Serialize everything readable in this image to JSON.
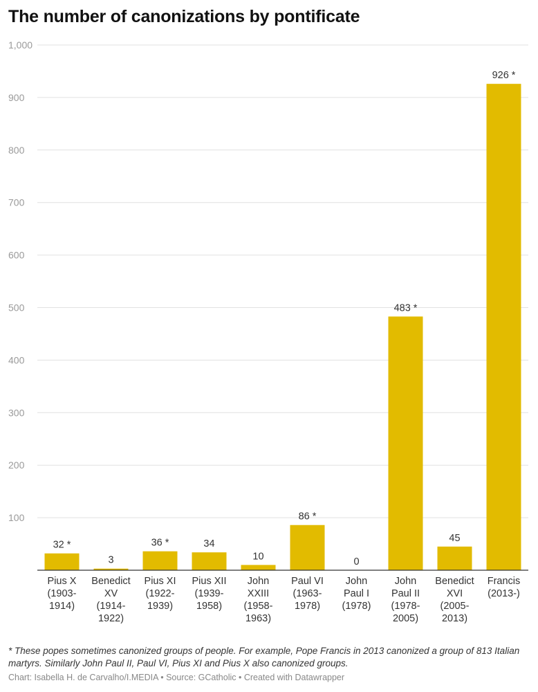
{
  "title": "The number of canonizations by pontificate",
  "chart_data": {
    "type": "bar",
    "title": "The number of canonizations by pontificate",
    "xlabel": "",
    "ylabel": "",
    "ylim": [
      0,
      1000
    ],
    "yticks": [
      "1,000",
      "900",
      "800",
      "700",
      "600",
      "500",
      "400",
      "300",
      "200",
      "100"
    ],
    "ytick_values": [
      1000,
      900,
      800,
      700,
      600,
      500,
      400,
      300,
      200,
      100
    ],
    "grid": true,
    "bar_color": "#e2bb00",
    "categories": [
      [
        "Pius X",
        "(1903-",
        "1914)"
      ],
      [
        "Benedict",
        "XV",
        "(1914-",
        "1922)"
      ],
      [
        "Pius XI",
        "(1922-",
        "1939)"
      ],
      [
        "Pius XII",
        "(1939-",
        "1958)"
      ],
      [
        "John",
        "XXIII",
        "(1958-",
        "1963)"
      ],
      [
        "Paul VI",
        "(1963-",
        "1978)"
      ],
      [
        "John",
        "Paul I",
        "(1978)"
      ],
      [
        "John",
        "Paul II",
        "(1978-",
        "2005)"
      ],
      [
        "Benedict",
        "XVI",
        "(2005-",
        "2013)"
      ],
      [
        "Francis",
        "(2013-)"
      ]
    ],
    "values": [
      32,
      3,
      36,
      34,
      10,
      86,
      0,
      483,
      45,
      926
    ],
    "data_labels": [
      "32 *",
      "3",
      "36 *",
      "34",
      "10",
      "86 *",
      "0",
      "483 *",
      "45",
      "926 *"
    ]
  },
  "footnote": "* These popes sometimes canonized groups of people. For example, Pope Francis in 2013 canonized a group of 813 Italian martyrs. Similarly John Paul II, Paul VI, Pius XI and Pius X also canonized groups.",
  "credit": "Chart: Isabella H. de Carvalho/I.MEDIA • Source: GCatholic • Created with Datawrapper"
}
